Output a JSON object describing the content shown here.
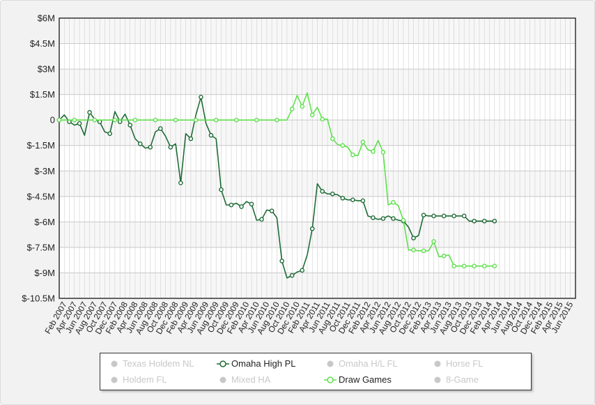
{
  "chart_data": {
    "type": "line",
    "title": "",
    "xlabel": "",
    "ylabel": "",
    "ylim": [
      -10500000,
      6000000
    ],
    "y_ticks": [
      "$6M",
      "$4.5M",
      "$3M",
      "$1.5M",
      "0",
      "$-1.5M",
      "$-3M",
      "$-4.5M",
      "$-6M",
      "$-7.5M",
      "$-9M",
      "$-10.5M"
    ],
    "x_tick_labels": [
      "Feb 2007",
      "Apr 2007",
      "Jun 2007",
      "Aug 2007",
      "Oct 2007",
      "Dec 2007",
      "Feb 2008",
      "Apr 2008",
      "Jun 2008",
      "Aug 2008",
      "Oct 2008",
      "Dec 2008",
      "Feb 2009",
      "Apr 2009",
      "Jun 2009",
      "Aug 2009",
      "Oct 2009",
      "Dec 2009",
      "Feb 2010",
      "Apr 2010",
      "Jun 2010",
      "Aug 2010",
      "Oct 2010",
      "Dec 2010",
      "Feb 2011",
      "Apr 2011",
      "Jun 2011",
      "Aug 2011",
      "Oct 2011",
      "Dec 2011",
      "Feb 2012",
      "Apr 2012",
      "Jun 2012",
      "Aug 2012",
      "Oct 2012",
      "Dec 2012",
      "Feb 2013",
      "Apr 2013",
      "Jun 2013",
      "Aug 2013",
      "Oct 2013",
      "Dec 2013",
      "Feb 2014",
      "Apr 2014",
      "Jun 2014",
      "Aug 2014",
      "Oct 2014",
      "Dec 2014",
      "Feb 2015",
      "Apr 2015",
      "Jun 2015"
    ],
    "x_start": "Jan 2007",
    "x_end": "Jul 2015",
    "grid": true,
    "series": [
      {
        "name": "Omaha High PL",
        "color": "#1e6b35",
        "points": [
          [
            "Jan 2007",
            0
          ],
          [
            "Feb 2007",
            0.3
          ],
          [
            "Mar 2007",
            -0.1
          ],
          [
            "Apr 2007",
            -0.3
          ],
          [
            "May 2007",
            -0.2
          ],
          [
            "Jun 2007",
            -0.9
          ],
          [
            "Jul 2007",
            0.45
          ],
          [
            "Aug 2007",
            0.05
          ],
          [
            "Sep 2007",
            -0.1
          ],
          [
            "Oct 2007",
            -0.7
          ],
          [
            "Nov 2007",
            -0.8
          ],
          [
            "Dec 2007",
            0.5
          ],
          [
            "Jan 2008",
            -0.1
          ],
          [
            "Feb 2008",
            0.35
          ],
          [
            "Mar 2008",
            -0.3
          ],
          [
            "Apr 2008",
            -1.1
          ],
          [
            "May 2008",
            -1.4
          ],
          [
            "Jun 2008",
            -1.65
          ],
          [
            "Jul 2008",
            -1.6
          ],
          [
            "Aug 2008",
            -0.7
          ],
          [
            "Sep 2008",
            -0.5
          ],
          [
            "Oct 2008",
            -0.95
          ],
          [
            "Nov 2008",
            -1.6
          ],
          [
            "Dec 2008",
            -1.4
          ],
          [
            "Jan 2009",
            -3.7
          ],
          [
            "Feb 2009",
            -0.8
          ],
          [
            "Mar 2009",
            -1.1
          ],
          [
            "Apr 2009",
            0.3
          ],
          [
            "May 2009",
            1.35
          ],
          [
            "Jun 2009",
            -0.2
          ],
          [
            "Jul 2009",
            -0.9
          ],
          [
            "Aug 2009",
            -1.1
          ],
          [
            "Sep 2009",
            -4.1
          ],
          [
            "Oct 2009",
            -5.0
          ],
          [
            "Nov 2009",
            -5.0
          ],
          [
            "Dec 2009",
            -4.9
          ],
          [
            "Jan 2010",
            -5.1
          ],
          [
            "Feb 2010",
            -4.8
          ],
          [
            "Mar 2010",
            -4.95
          ],
          [
            "Apr 2010",
            -5.9
          ],
          [
            "May 2010",
            -5.85
          ],
          [
            "Jun 2010",
            -5.3
          ],
          [
            "Jul 2010",
            -5.35
          ],
          [
            "Aug 2010",
            -5.75
          ],
          [
            "Sep 2010",
            -8.3
          ],
          [
            "Oct 2010",
            -9.3
          ],
          [
            "Nov 2010",
            -9.15
          ],
          [
            "Dec 2010",
            -8.95
          ],
          [
            "Jan 2011",
            -8.85
          ],
          [
            "Feb 2011",
            -7.95
          ],
          [
            "Mar 2011",
            -6.4
          ],
          [
            "Apr 2011",
            -3.75
          ],
          [
            "May 2011",
            -4.2
          ],
          [
            "Jun 2011",
            -4.35
          ],
          [
            "Jul 2011",
            -4.35
          ],
          [
            "Aug 2011",
            -4.4
          ],
          [
            "Sep 2011",
            -4.6
          ],
          [
            "Oct 2011",
            -4.7
          ],
          [
            "Nov 2011",
            -4.7
          ],
          [
            "Dec 2011",
            -4.75
          ],
          [
            "Jan 2012",
            -4.75
          ],
          [
            "Feb 2012",
            -5.65
          ],
          [
            "Mar 2012",
            -5.75
          ],
          [
            "Apr 2012",
            -5.85
          ],
          [
            "May 2012",
            -5.8
          ],
          [
            "Jun 2012",
            -5.65
          ],
          [
            "Jul 2012",
            -5.8
          ],
          [
            "Aug 2012",
            -5.9
          ],
          [
            "Sep 2012",
            -5.95
          ],
          [
            "Oct 2012",
            -6.3
          ],
          [
            "Nov 2012",
            -6.95
          ],
          [
            "Dec 2012",
            -6.8
          ],
          [
            "Jan 2013",
            -5.6
          ],
          [
            "Feb 2013",
            -5.65
          ],
          [
            "Mar 2013",
            -5.65
          ],
          [
            "Apr 2013",
            -5.65
          ],
          [
            "May 2013",
            -5.65
          ],
          [
            "Jun 2013",
            -5.65
          ],
          [
            "Jul 2013",
            -5.65
          ],
          [
            "Aug 2013",
            -5.65
          ],
          [
            "Sep 2013",
            -5.65
          ],
          [
            "Oct 2013",
            -5.95
          ],
          [
            "Nov 2013",
            -5.95
          ],
          [
            "Dec 2013",
            -5.95
          ],
          [
            "Jan 2014",
            -5.95
          ],
          [
            "Feb 2014",
            -5.95
          ],
          [
            "Mar 2014",
            -5.95
          ]
        ]
      },
      {
        "name": "Draw Games",
        "color": "#5ee04c",
        "points": [
          [
            "Jan 2007",
            0
          ],
          [
            "Feb 2007",
            0
          ],
          [
            "Apr 2007",
            0
          ],
          [
            "Jun 2007",
            0
          ],
          [
            "Aug 2007",
            0
          ],
          [
            "Oct 2007",
            0
          ],
          [
            "Dec 2007",
            0
          ],
          [
            "Feb 2008",
            0
          ],
          [
            "Apr 2008",
            0
          ],
          [
            "Jun 2008",
            0
          ],
          [
            "Aug 2008",
            0
          ],
          [
            "Oct 2008",
            0
          ],
          [
            "Dec 2008",
            0
          ],
          [
            "Feb 2009",
            0
          ],
          [
            "Apr 2009",
            0
          ],
          [
            "Jun 2009",
            0
          ],
          [
            "Aug 2009",
            0
          ],
          [
            "Oct 2009",
            0
          ],
          [
            "Dec 2009",
            0
          ],
          [
            "Feb 2010",
            0
          ],
          [
            "Apr 2010",
            0
          ],
          [
            "Jun 2010",
            0
          ],
          [
            "Aug 2010",
            0
          ],
          [
            "Oct 2010",
            0
          ],
          [
            "Nov 2010",
            0.65
          ],
          [
            "Dec 2010",
            1.45
          ],
          [
            "Jan 2011",
            0.8
          ],
          [
            "Feb 2011",
            1.6
          ],
          [
            "Mar 2011",
            0.3
          ],
          [
            "Apr 2011",
            0.75
          ],
          [
            "May 2011",
            0.05
          ],
          [
            "Jun 2011",
            0.05
          ],
          [
            "Jul 2011",
            -1.1
          ],
          [
            "Aug 2011",
            -1.45
          ],
          [
            "Sep 2011",
            -1.5
          ],
          [
            "Oct 2011",
            -1.6
          ],
          [
            "Nov 2011",
            -2.05
          ],
          [
            "Dec 2011",
            -2.1
          ],
          [
            "Jan 2012",
            -1.3
          ],
          [
            "Feb 2012",
            -1.75
          ],
          [
            "Mar 2012",
            -1.85
          ],
          [
            "Apr 2012",
            -1.2
          ],
          [
            "May 2012",
            -1.9
          ],
          [
            "Jun 2012",
            -5.0
          ],
          [
            "Jul 2012",
            -4.85
          ],
          [
            "Aug 2012",
            -5.05
          ],
          [
            "Sep 2012",
            -5.9
          ],
          [
            "Oct 2012",
            -7.65
          ],
          [
            "Nov 2012",
            -7.65
          ],
          [
            "Dec 2012",
            -7.7
          ],
          [
            "Jan 2013",
            -7.7
          ],
          [
            "Feb 2013",
            -7.7
          ],
          [
            "Mar 2013",
            -7.15
          ],
          [
            "Apr 2013",
            -8.05
          ],
          [
            "May 2013",
            -8.0
          ],
          [
            "Jun 2013",
            -7.95
          ],
          [
            "Jul 2013",
            -8.6
          ],
          [
            "Aug 2013",
            -8.6
          ],
          [
            "Sep 2013",
            -8.6
          ],
          [
            "Oct 2013",
            -8.6
          ],
          [
            "Nov 2013",
            -8.6
          ],
          [
            "Dec 2013",
            -8.6
          ],
          [
            "Jan 2014",
            -8.6
          ],
          [
            "Feb 2014",
            -8.6
          ],
          [
            "Mar 2014",
            -8.6
          ]
        ]
      }
    ],
    "y_unit_note": ""
  },
  "legend": {
    "items": [
      {
        "label": "Texas Holdem NL",
        "active": false,
        "color": "#c8c8c8"
      },
      {
        "label": "Omaha High PL",
        "active": true,
        "color": "#1e6b35"
      },
      {
        "label": "Omaha H/L FL",
        "active": false,
        "color": "#c8c8c8"
      },
      {
        "label": "Horse FL",
        "active": false,
        "color": "#c8c8c8"
      },
      {
        "label": "Holdem FL",
        "active": false,
        "color": "#c8c8c8"
      },
      {
        "label": "Mixed HA",
        "active": false,
        "color": "#c8c8c8"
      },
      {
        "label": "Draw Games",
        "active": true,
        "color": "#5ee04c"
      },
      {
        "label": "8-Game",
        "active": false,
        "color": "#c8c8c8"
      }
    ]
  }
}
